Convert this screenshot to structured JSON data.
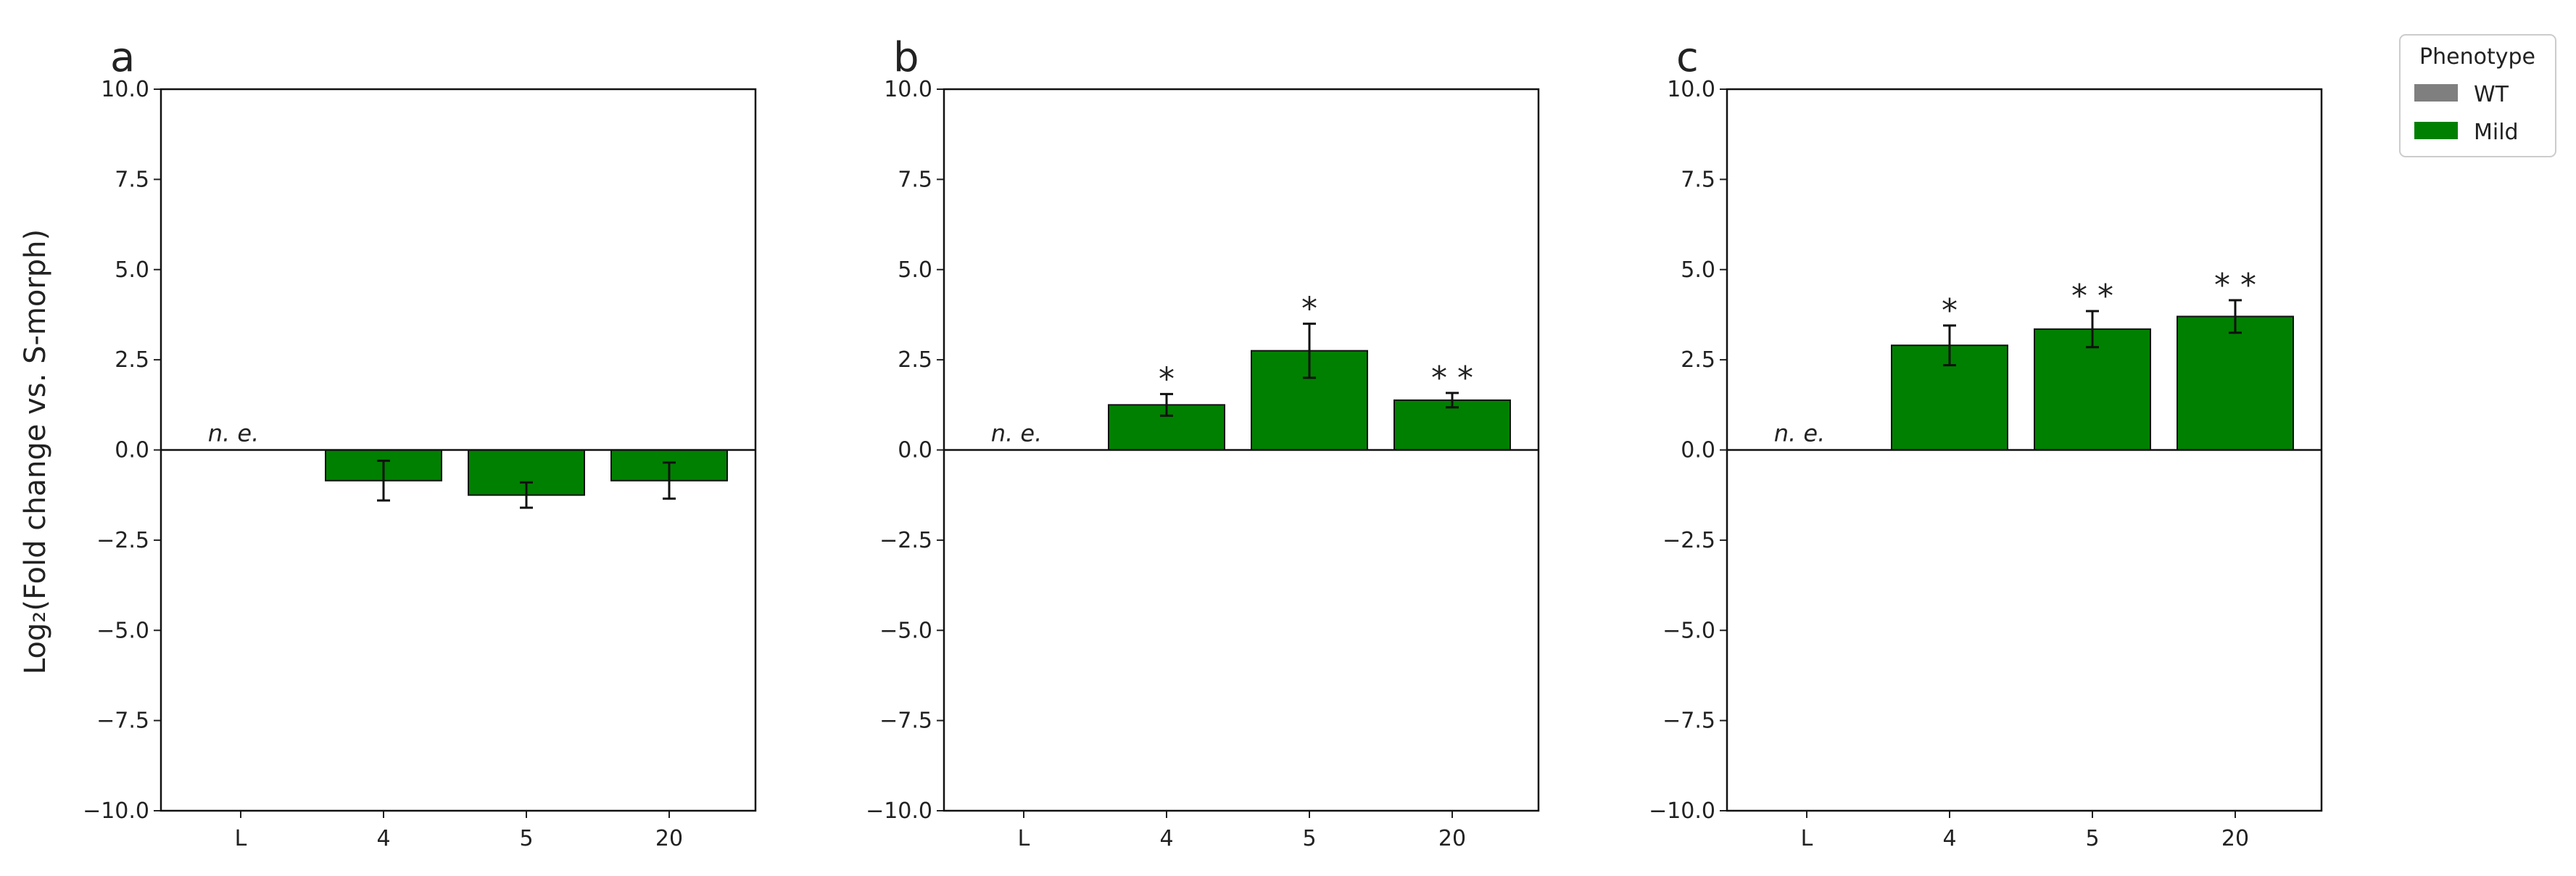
{
  "figure": {
    "ylabel": "Log₂(Fold change vs. S-morph)",
    "legend": {
      "title": "Phenotype",
      "entries": [
        {
          "label": "WT",
          "color": "#7f7f7f"
        },
        {
          "label": "Mild",
          "color": "#008000"
        }
      ]
    }
  },
  "chart_data": [
    {
      "type": "bar",
      "panel": "a",
      "categories": [
        "L",
        "4",
        "5",
        "20"
      ],
      "values": [
        null,
        -0.85,
        -1.25,
        -0.85
      ],
      "errors": [
        null,
        0.55,
        0.35,
        0.5
      ],
      "annotations": [
        "n. e.",
        "",
        "",
        ""
      ],
      "ylim": [
        -10,
        10
      ],
      "yticks": [
        "10.0",
        "7.5",
        "5.0",
        "2.5",
        "0.0",
        "−2.5",
        "−5.0",
        "−7.5",
        "−10.0"
      ],
      "bar_color": "#008000"
    },
    {
      "type": "bar",
      "panel": "b",
      "categories": [
        "L",
        "4",
        "5",
        "20"
      ],
      "values": [
        null,
        1.25,
        2.75,
        1.38
      ],
      "errors": [
        null,
        0.3,
        0.75,
        0.2
      ],
      "annotations": [
        "n. e.",
        "*",
        "*",
        "* *"
      ],
      "ylim": [
        -10,
        10
      ],
      "yticks": [
        "10.0",
        "7.5",
        "5.0",
        "2.5",
        "0.0",
        "−2.5",
        "−5.0",
        "−7.5",
        "−10.0"
      ],
      "bar_color": "#008000"
    },
    {
      "type": "bar",
      "panel": "c",
      "categories": [
        "L",
        "4",
        "5",
        "20"
      ],
      "values": [
        null,
        2.9,
        3.35,
        3.7
      ],
      "errors": [
        null,
        0.55,
        0.5,
        0.45
      ],
      "annotations": [
        "n. e.",
        "*",
        "* *",
        "* *"
      ],
      "ylim": [
        -10,
        10
      ],
      "yticks": [
        "10.0",
        "7.5",
        "5.0",
        "2.5",
        "0.0",
        "−2.5",
        "−5.0",
        "−7.5",
        "−10.0"
      ],
      "bar_color": "#008000"
    }
  ]
}
